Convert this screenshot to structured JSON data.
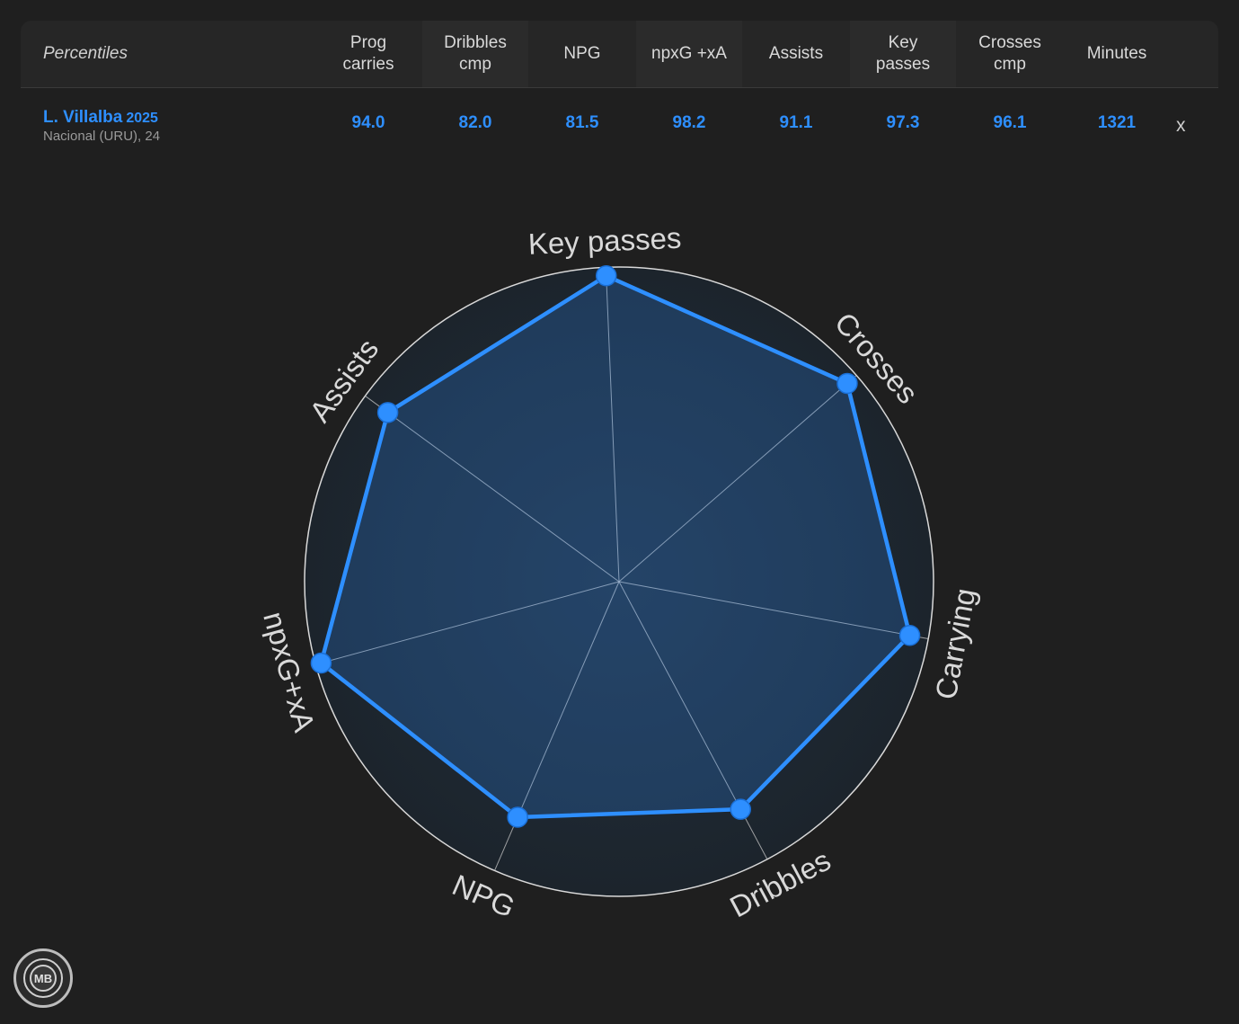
{
  "table": {
    "header_label": "Percentiles",
    "columns": [
      "Prog\ncarries",
      "Dribbles\ncmp",
      "NPG",
      "npxG +xA",
      "Assists",
      "Key\npasses",
      "Crosses\ncmp",
      "Minutes"
    ],
    "player": {
      "name": "L. Villalba",
      "year": "2025",
      "club": "Nacional (URU), 24",
      "values": [
        "94.0",
        "82.0",
        "81.5",
        "98.2",
        "91.1",
        "97.3",
        "96.1",
        "1321"
      ]
    },
    "close_label": "x"
  },
  "logo": {
    "text": "MB"
  },
  "chart_data": {
    "type": "radar",
    "axes": [
      "Key passes",
      "Crosses",
      "Carrying",
      "Dribbles",
      "NPG",
      "npxG+xA",
      "Assists"
    ],
    "values": [
      97.3,
      96.1,
      94.0,
      82.0,
      81.5,
      98.2,
      91.1
    ],
    "range": [
      0,
      100
    ],
    "colors": {
      "line": "#2e8fff",
      "fill": "#2e8fff",
      "ring": "#d9d9d9",
      "spoke": "#c8c8c8",
      "label": "#d9d9d9"
    }
  }
}
